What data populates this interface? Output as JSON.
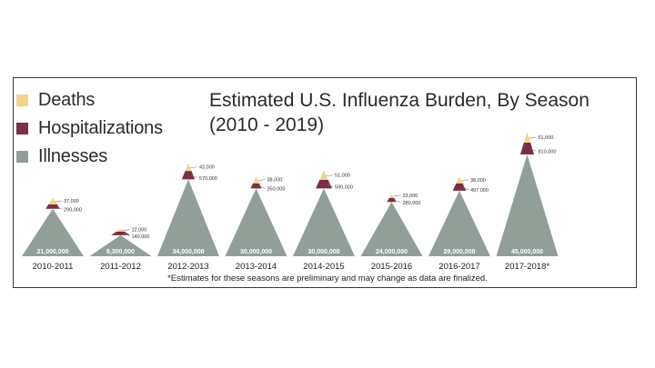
{
  "chart_data": {
    "type": "stacked-triangle",
    "title": "Estimated U.S. Influenza Burden, By Season (2010 - 2019)",
    "legend": [
      {
        "name": "Deaths",
        "color": "#f3d48c"
      },
      {
        "name": "Hospitalizations",
        "color": "#7a2f45"
      },
      {
        "name": "Illnesses",
        "color": "#929f99"
      }
    ],
    "categories": [
      "2010-2011",
      "2011-2012",
      "2012-2013",
      "2013-2014",
      "2014-2015",
      "2015-2016",
      "2016-2017",
      "2017-2018*"
    ],
    "series": [
      {
        "name": "Illnesses",
        "values": [
          21000000,
          9300000,
          34000000,
          30000000,
          30000000,
          24000000,
          29000000,
          45000000
        ],
        "labels": [
          "21,000,000",
          "9,300,000",
          "34,000,000",
          "30,000,000",
          "30,000,000",
          "24,000,000",
          "29,000,000",
          "45,000,000"
        ]
      },
      {
        "name": "Hospitalizations",
        "values": [
          290000,
          140000,
          570000,
          350000,
          590000,
          280000,
          497000,
          810000
        ],
        "labels": [
          "290,000",
          "140,000",
          "570,000",
          "350,000",
          "590,000",
          "280,000",
          "497,000",
          "810,000"
        ]
      },
      {
        "name": "Deaths",
        "values": [
          37000,
          12000,
          43000,
          38000,
          51000,
          23000,
          38000,
          61000
        ],
        "labels": [
          "37,000",
          "12,000",
          "43,000",
          "38,000",
          "51,000",
          "23,000",
          "38,000",
          "61,000"
        ]
      }
    ],
    "footnote": "*Estimates for these seasons are preliminary and may change as data are finalized."
  }
}
